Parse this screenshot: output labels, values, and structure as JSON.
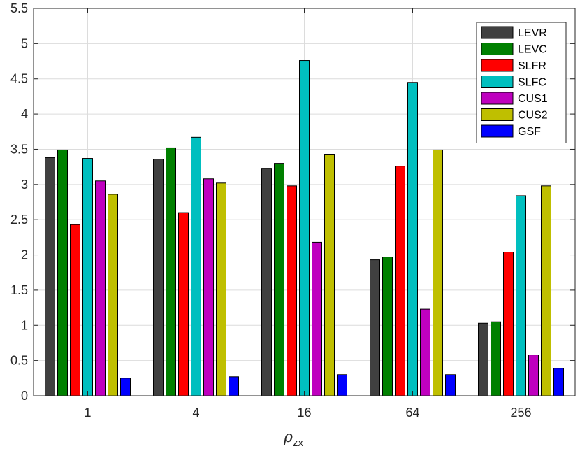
{
  "chart_data": {
    "type": "bar",
    "title": "",
    "xlabel": "ρ",
    "xlabel_subscript": "zx",
    "ylabel": "",
    "ylim": [
      0,
      5.5
    ],
    "yticks": [
      0,
      0.5,
      1,
      1.5,
      2,
      2.5,
      3,
      3.5,
      4,
      4.5,
      5,
      5.5
    ],
    "ytick_labels": [
      "0",
      "0.5",
      "1",
      "1.5",
      "2",
      "2.5",
      "3",
      "3.5",
      "4",
      "4.5",
      "5",
      "5.5"
    ],
    "categories": [
      "1",
      "4",
      "16",
      "64",
      "256"
    ],
    "grid": true,
    "legend_position": "top-right",
    "series": [
      {
        "name": "LEVR",
        "color": "#404040",
        "values": [
          3.38,
          3.36,
          3.23,
          1.93,
          1.03
        ]
      },
      {
        "name": "LEVC",
        "color": "#008000",
        "values": [
          3.49,
          3.52,
          3.3,
          1.97,
          1.05
        ]
      },
      {
        "name": "SLFR",
        "color": "#ff0000",
        "values": [
          2.43,
          2.6,
          2.98,
          3.26,
          2.04
        ]
      },
      {
        "name": "SLFC",
        "color": "#00bfbf",
        "values": [
          3.37,
          3.67,
          4.76,
          4.45,
          2.84
        ]
      },
      {
        "name": "CUS1",
        "color": "#bf00bf",
        "values": [
          3.05,
          3.08,
          2.18,
          1.23,
          0.58
        ]
      },
      {
        "name": "CUS2",
        "color": "#bfbf00",
        "values": [
          2.86,
          3.02,
          3.43,
          3.49,
          2.98
        ]
      },
      {
        "name": "GSF",
        "color": "#0000ff",
        "values": [
          0.25,
          0.27,
          0.3,
          0.3,
          0.39
        ]
      }
    ]
  }
}
